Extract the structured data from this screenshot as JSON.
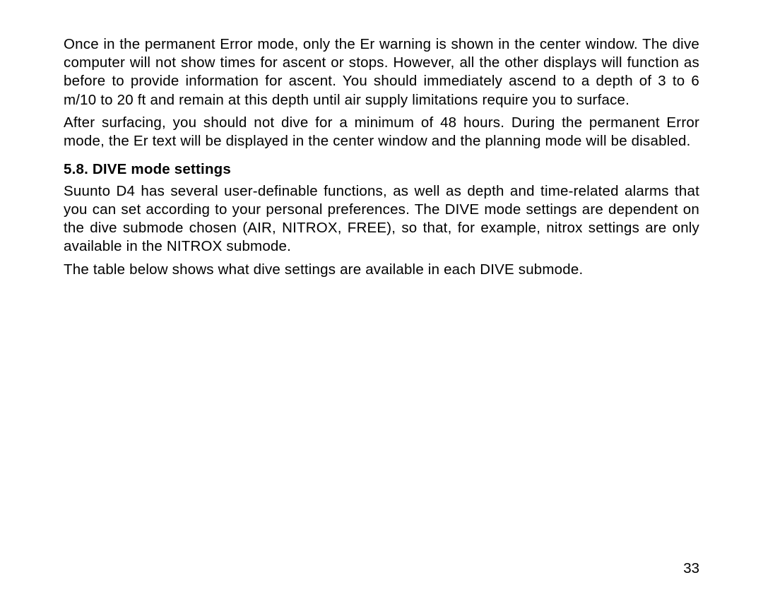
{
  "body": {
    "para1": "Once in the permanent Error mode, only the Er warning is shown in the center window. The dive computer will not show times for ascent or stops. However, all the other displays will function as before to provide information for ascent. You should immediately ascend to a depth of 3 to 6 m/10 to 20 ft and remain at this depth until air supply limitations require you to surface.",
    "para2": "After surfacing, you should not dive for a minimum of 48 hours. During the permanent Error mode, the Er text will be displayed in the center window and the planning mode will be disabled.",
    "heading": "5.8. DIVE mode settings",
    "para3": "Suunto D4 has several user-definable functions, as well as depth and time-related alarms that you can set according to your personal preferences. The DIVE mode settings are dependent on the dive submode chosen (AIR, NITROX, FREE), so that, for example, nitrox settings are only available in the NITROX submode.",
    "para4": "The table below shows what dive settings are available in each DIVE submmode.",
    "para4_actual": "The table below shows what dive settings are available in each DIVE submode."
  },
  "page_number": "33"
}
